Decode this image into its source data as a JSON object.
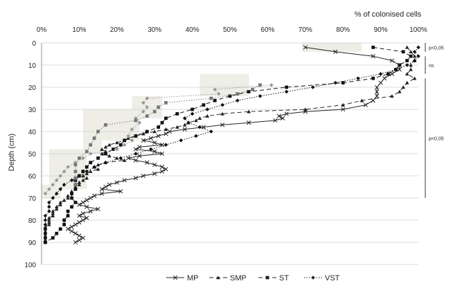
{
  "chart_data": {
    "type": "line",
    "x_axis_title": "% of colonised cells",
    "y_axis_title": "Depth (cm)",
    "x_ticks": [
      "0%",
      "10%",
      "20%",
      "30%",
      "40%",
      "50%",
      "60%",
      "70%",
      "80%",
      "90%",
      "100%"
    ],
    "y_ticks": [
      "0",
      "10",
      "20",
      "30",
      "40",
      "50",
      "60",
      "70",
      "80",
      "90",
      "100"
    ],
    "xlim": [
      0,
      100
    ],
    "ylim": [
      0,
      100
    ],
    "y_reversed": true,
    "x_axis_position": "top",
    "grid": "horizontal",
    "legend_position": "bottom",
    "series": [
      {
        "name": "MP",
        "color": "#222222",
        "line_style": "solid",
        "marker": "x",
        "points": [
          [
            70,
            2
          ],
          [
            78,
            4
          ],
          [
            88,
            6
          ],
          [
            93,
            8
          ],
          [
            95,
            10
          ],
          [
            95,
            12
          ],
          [
            93,
            14
          ],
          [
            91,
            16
          ],
          [
            90,
            18
          ],
          [
            89,
            20
          ],
          [
            89,
            22
          ],
          [
            89,
            24
          ],
          [
            88,
            26
          ],
          [
            86,
            28
          ],
          [
            80,
            30
          ],
          [
            70,
            31
          ],
          [
            65,
            32
          ],
          [
            63,
            33
          ],
          [
            64,
            34
          ],
          [
            62,
            35
          ],
          [
            55,
            36
          ],
          [
            48,
            37
          ],
          [
            43,
            38
          ],
          [
            38,
            39
          ],
          [
            34,
            40
          ],
          [
            33,
            41
          ],
          [
            31,
            42
          ],
          [
            29,
            43
          ],
          [
            27,
            44
          ],
          [
            30,
            45
          ],
          [
            32,
            46
          ],
          [
            26,
            47
          ],
          [
            25,
            48
          ],
          [
            30,
            49
          ],
          [
            32,
            50
          ],
          [
            26,
            51
          ],
          [
            23,
            52
          ],
          [
            25,
            53
          ],
          [
            28,
            54
          ],
          [
            30,
            55
          ],
          [
            32,
            56
          ],
          [
            33,
            57
          ],
          [
            32,
            58
          ],
          [
            30,
            59
          ],
          [
            27,
            60
          ],
          [
            25,
            61
          ],
          [
            22,
            62
          ],
          [
            20,
            63
          ],
          [
            18,
            64
          ],
          [
            17,
            65
          ],
          [
            16,
            66
          ],
          [
            21,
            67
          ],
          [
            16,
            68
          ],
          [
            14,
            69
          ],
          [
            13,
            70
          ],
          [
            12,
            71
          ],
          [
            11,
            72
          ],
          [
            10,
            73
          ],
          [
            12,
            74
          ],
          [
            15,
            75
          ],
          [
            13,
            76
          ],
          [
            11,
            77
          ],
          [
            10,
            78
          ],
          [
            12,
            79
          ],
          [
            11,
            80
          ],
          [
            10,
            81
          ],
          [
            9,
            82
          ],
          [
            8,
            83
          ],
          [
            7,
            84
          ],
          [
            8,
            85
          ],
          [
            9,
            86
          ],
          [
            10,
            87
          ],
          [
            11,
            88
          ],
          [
            10,
            89
          ],
          [
            9,
            90
          ]
        ]
      },
      {
        "name": "SMP",
        "color": "#222222",
        "line_style": "dashed",
        "marker": "triangle",
        "points": [
          [
            97,
            2
          ],
          [
            98,
            4
          ],
          [
            99,
            6
          ],
          [
            99,
            8
          ],
          [
            98,
            10
          ],
          [
            98,
            12
          ],
          [
            97,
            14
          ],
          [
            99,
            16
          ],
          [
            97,
            18
          ],
          [
            96,
            20
          ],
          [
            95,
            22
          ],
          [
            93,
            24
          ],
          [
            85,
            26
          ],
          [
            80,
            28
          ],
          [
            70,
            30
          ],
          [
            55,
            31
          ],
          [
            48,
            32
          ],
          [
            44,
            33
          ],
          [
            42,
            34
          ],
          [
            41,
            35
          ],
          [
            39,
            36
          ],
          [
            38,
            37
          ],
          [
            36,
            38
          ],
          [
            33,
            39
          ],
          [
            30,
            40
          ],
          [
            27,
            41
          ],
          [
            25,
            42
          ],
          [
            23,
            43
          ],
          [
            22,
            44
          ],
          [
            20,
            45
          ],
          [
            18,
            46
          ],
          [
            17,
            47
          ],
          [
            16,
            48
          ],
          [
            17,
            49
          ],
          [
            16,
            50
          ],
          [
            18,
            51
          ],
          [
            20,
            52
          ],
          [
            22,
            53
          ],
          [
            17,
            54
          ],
          [
            15,
            55
          ],
          [
            14,
            56
          ],
          [
            15,
            57
          ],
          [
            13,
            58
          ],
          [
            12,
            59
          ],
          [
            11,
            60
          ],
          [
            12,
            61
          ],
          [
            11,
            62
          ],
          [
            10,
            63
          ],
          [
            10,
            64
          ],
          [
            9,
            65
          ],
          [
            9,
            66
          ],
          [
            8,
            67
          ],
          [
            8,
            68
          ],
          [
            7,
            69
          ],
          [
            7,
            70
          ],
          [
            6,
            71
          ],
          [
            5,
            72
          ],
          [
            5,
            73
          ],
          [
            4,
            74
          ],
          [
            4,
            75
          ],
          [
            3,
            76
          ],
          [
            3,
            77
          ],
          [
            3,
            78
          ],
          [
            2,
            79
          ],
          [
            2,
            80
          ],
          [
            2,
            81
          ],
          [
            2,
            82
          ],
          [
            1,
            83
          ],
          [
            1,
            84
          ],
          [
            1,
            85
          ],
          [
            1,
            86
          ],
          [
            1,
            87
          ],
          [
            1,
            88
          ],
          [
            1,
            89
          ],
          [
            1,
            90
          ]
        ]
      },
      {
        "name": "ST",
        "color": "#111111",
        "line_style": "dashed",
        "marker": "square",
        "points": [
          [
            88,
            2
          ],
          [
            96,
            4
          ],
          [
            98,
            6
          ],
          [
            97,
            8
          ],
          [
            95,
            10
          ],
          [
            94,
            12
          ],
          [
            92,
            14
          ],
          [
            88,
            16
          ],
          [
            80,
            18
          ],
          [
            65,
            20
          ],
          [
            55,
            22
          ],
          [
            50,
            24
          ],
          [
            46,
            26
          ],
          [
            43,
            28
          ],
          [
            40,
            30
          ],
          [
            36,
            32
          ],
          [
            33,
            34
          ],
          [
            32,
            36
          ],
          [
            31,
            38
          ],
          [
            28,
            40
          ],
          [
            25,
            42
          ],
          [
            22,
            44
          ],
          [
            21,
            46
          ],
          [
            19,
            48
          ],
          [
            17,
            50
          ],
          [
            15,
            52
          ],
          [
            13,
            54
          ],
          [
            12,
            56
          ],
          [
            11,
            58
          ],
          [
            10,
            60
          ],
          [
            9,
            62
          ],
          [
            9,
            64
          ],
          [
            9,
            66
          ],
          [
            8,
            68
          ],
          [
            8,
            70
          ],
          [
            9,
            72
          ],
          [
            8,
            74
          ],
          [
            7,
            76
          ],
          [
            7,
            78
          ],
          [
            6,
            80
          ],
          [
            6,
            82
          ],
          [
            5,
            84
          ],
          [
            4,
            86
          ],
          [
            3,
            88
          ],
          [
            1,
            90
          ]
        ]
      },
      {
        "name": "VST",
        "color": "#111111",
        "line_style": "dotted",
        "marker": "diamond",
        "points": [
          [
            100,
            2
          ],
          [
            99,
            4
          ],
          [
            100,
            6
          ],
          [
            99,
            8
          ],
          [
            97,
            10
          ],
          [
            94,
            12
          ],
          [
            90,
            14
          ],
          [
            84,
            16
          ],
          [
            78,
            18
          ],
          [
            72,
            20
          ],
          [
            65,
            22
          ],
          [
            58,
            24
          ],
          [
            52,
            26
          ],
          [
            48,
            28
          ],
          [
            44,
            30
          ],
          [
            40,
            32
          ],
          [
            38,
            34
          ],
          [
            39,
            36
          ],
          [
            42,
            38
          ],
          [
            45,
            40
          ],
          [
            41,
            42
          ],
          [
            37,
            44
          ],
          [
            33,
            46
          ],
          [
            29,
            48
          ],
          [
            25,
            50
          ],
          [
            21,
            52
          ],
          [
            17,
            54
          ],
          [
            14,
            56
          ],
          [
            12,
            58
          ],
          [
            10,
            60
          ],
          [
            8,
            62
          ],
          [
            6,
            64
          ],
          [
            5,
            66
          ],
          [
            4,
            68
          ],
          [
            3,
            70
          ],
          [
            2,
            72
          ],
          [
            2,
            74
          ],
          [
            2,
            76
          ],
          [
            1,
            78
          ],
          [
            1,
            80
          ],
          [
            1,
            82
          ],
          [
            1,
            84
          ],
          [
            1,
            86
          ],
          [
            1,
            88
          ],
          [
            1,
            90
          ]
        ]
      },
      {
        "name": "",
        "color": "#999999",
        "line_style": "dotted",
        "marker": "diamond",
        "points": [
          [
            61,
            19
          ],
          [
            46,
            21
          ],
          [
            47,
            23
          ],
          [
            28,
            25
          ],
          [
            27,
            27
          ],
          [
            28,
            29
          ],
          [
            27,
            31
          ],
          [
            25,
            34
          ],
          [
            26,
            36
          ],
          [
            24,
            39
          ],
          [
            23,
            42
          ],
          [
            24,
            44
          ],
          [
            22,
            46
          ],
          [
            20,
            48
          ],
          [
            13,
            50
          ],
          [
            11,
            52
          ],
          [
            9,
            54
          ],
          [
            7,
            56
          ],
          [
            6,
            58
          ],
          [
            5,
            60
          ],
          [
            4,
            62
          ],
          [
            3,
            64
          ],
          [
            2,
            66
          ],
          [
            1,
            68
          ]
        ]
      },
      {
        "name": "",
        "color": "#777777",
        "line_style": "dotted",
        "marker": "square",
        "points": [
          [
            58,
            19
          ],
          [
            56,
            21
          ],
          [
            52,
            23
          ],
          [
            45,
            25
          ],
          [
            33,
            27
          ],
          [
            31,
            29
          ],
          [
            30,
            31
          ],
          [
            28,
            33
          ],
          [
            25,
            35
          ],
          [
            17,
            37
          ],
          [
            15,
            40
          ],
          [
            14,
            43
          ],
          [
            13,
            46
          ],
          [
            12,
            49
          ],
          [
            10,
            52
          ],
          [
            9,
            55
          ],
          [
            9,
            58
          ],
          [
            9,
            61
          ],
          [
            9,
            64
          ]
        ]
      }
    ],
    "shaded_bands": [
      {
        "x0": 69,
        "x1": 85,
        "y0": 0,
        "y1": 4
      },
      {
        "x0": 42,
        "x1": 55,
        "y0": 14,
        "y1": 24
      },
      {
        "x0": 24,
        "x1": 32,
        "y0": 24,
        "y1": 34
      },
      {
        "x0": 11,
        "x1": 26,
        "y0": 30,
        "y1": 44
      },
      {
        "x0": 11,
        "x1": 16,
        "y0": 44,
        "y1": 50
      },
      {
        "x0": 2,
        "x1": 12,
        "y0": 48,
        "y1": 66
      },
      {
        "x0": 0,
        "x1": 5,
        "y0": 64,
        "y1": 70
      }
    ],
    "significance": [
      {
        "label": "p<0,05",
        "y0": 0,
        "y1": 4
      },
      {
        "label": "ns",
        "y0": 6,
        "y1": 14
      },
      {
        "label": "p<0,05",
        "y0": 16,
        "y1": 70
      }
    ]
  },
  "legend": [
    {
      "label": "MP",
      "line_style": "solid",
      "marker": "x"
    },
    {
      "label": "SMP",
      "line_style": "dashed",
      "marker": "triangle"
    },
    {
      "label": "ST",
      "line_style": "dashed",
      "marker": "square"
    },
    {
      "label": "VST",
      "line_style": "dotted",
      "marker": "diamond"
    }
  ]
}
